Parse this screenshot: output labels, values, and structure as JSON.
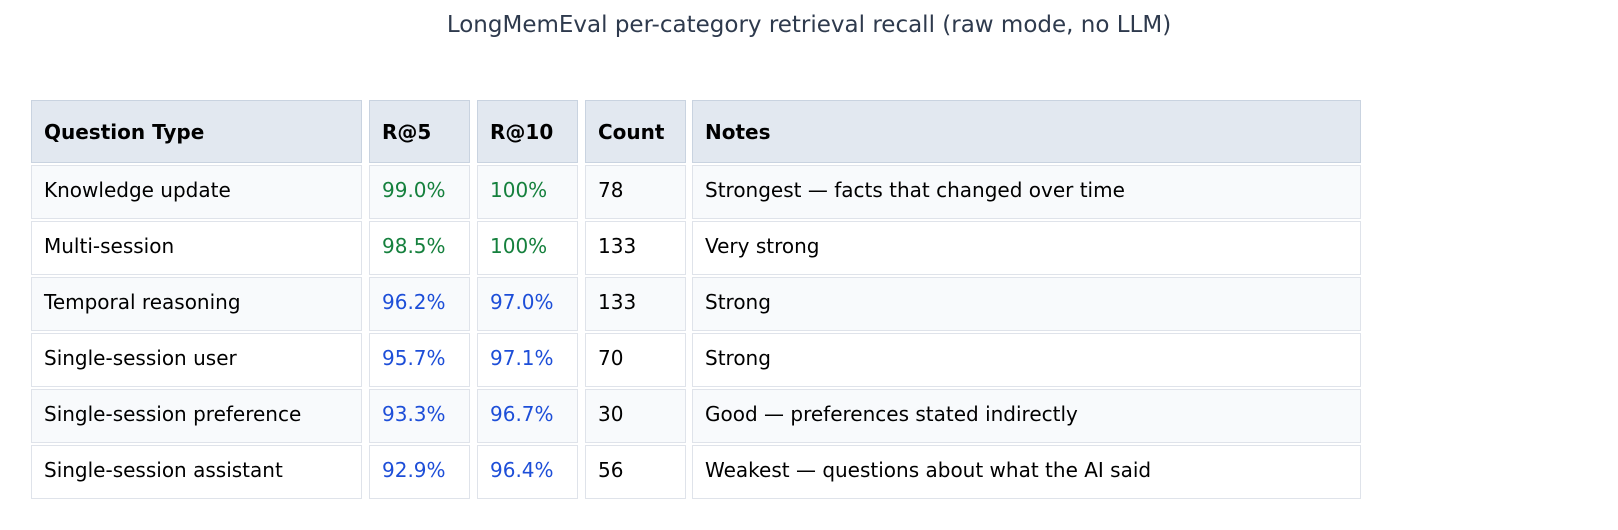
{
  "chart_data": {
    "type": "table",
    "title": "LongMemEval per-category retrieval recall (raw mode, no LLM)",
    "columns": [
      "Question Type",
      "R@5",
      "R@10",
      "Count",
      "Notes"
    ],
    "rows": [
      [
        "Knowledge update",
        "99.0%",
        "100%",
        "78",
        "Strongest — facts that changed over time"
      ],
      [
        "Multi-session",
        "98.5%",
        "100%",
        "133",
        "Very strong"
      ],
      [
        "Temporal reasoning",
        "96.2%",
        "97.0%",
        "133",
        "Strong"
      ],
      [
        "Single-session user",
        "95.7%",
        "97.1%",
        "70",
        "Strong"
      ],
      [
        "Single-session preference",
        "93.3%",
        "96.7%",
        "30",
        "Good — preferences stated indirectly"
      ],
      [
        "Single-session assistant",
        "92.9%",
        "96.4%",
        "56",
        "Weakest — questions about what the AI said"
      ]
    ],
    "value_colors": {
      "green": "#15803d",
      "blue": "#1d4ed8",
      "default": "#000000"
    },
    "color_threshold": 98
  }
}
